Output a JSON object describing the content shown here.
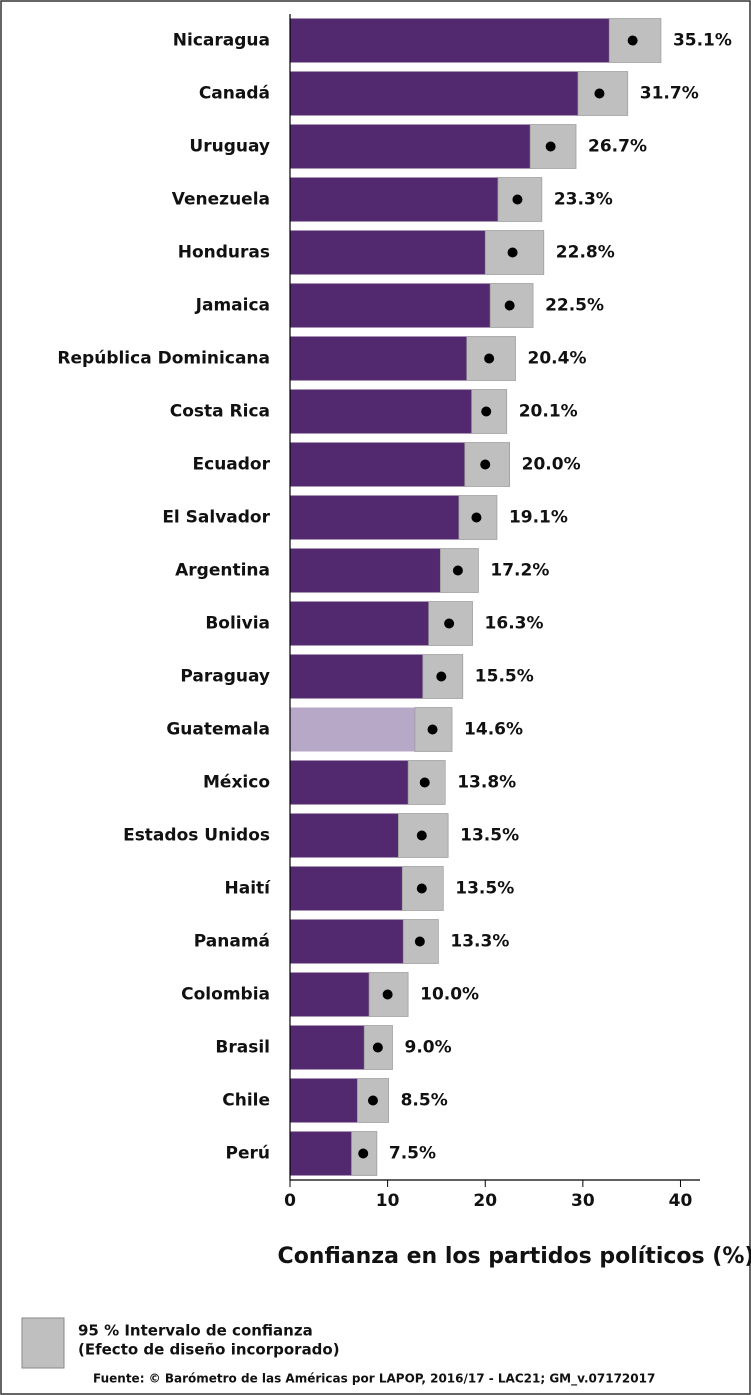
{
  "chart_data": {
    "type": "hbar_ci",
    "categories": [
      "Nicaragua",
      "Canadá",
      "Uruguay",
      "Venezuela",
      "Honduras",
      "Jamaica",
      "República Dominicana",
      "Costa Rica",
      "Ecuador",
      "El Salvador",
      "Argentina",
      "Bolivia",
      "Paraguay",
      "Guatemala",
      "México",
      "Estados Unidos",
      "Haití",
      "Panamá",
      "Colombia",
      "Brasil",
      "Chile",
      "Perú"
    ],
    "series": [
      {
        "values": [
          35.1,
          31.7,
          26.7,
          23.3,
          22.8,
          22.5,
          20.4,
          20.1,
          20.0,
          19.1,
          17.2,
          16.3,
          15.5,
          14.6,
          13.8,
          13.5,
          13.5,
          13.3,
          10.0,
          9.0,
          8.5,
          7.5
        ],
        "value_labels": [
          "35.1%",
          "31.7%",
          "26.7%",
          "23.3%",
          "22.8%",
          "22.5%",
          "20.4%",
          "20.1%",
          "20.0%",
          "19.1%",
          "17.2%",
          "16.3%",
          "15.5%",
          "14.6%",
          "13.8%",
          "13.5%",
          "13.5%",
          "13.3%",
          "10.0%",
          "9.0%",
          "8.5%",
          "7.5%"
        ],
        "ci_low": [
          32.7,
          29.5,
          24.6,
          21.3,
          20.0,
          20.5,
          18.1,
          18.6,
          17.9,
          17.3,
          15.4,
          14.2,
          13.6,
          12.8,
          12.1,
          11.1,
          11.5,
          11.6,
          8.1,
          7.6,
          6.9,
          6.3
        ],
        "ci_high": [
          38.0,
          34.6,
          29.3,
          25.8,
          26.0,
          24.9,
          23.1,
          22.2,
          22.5,
          21.2,
          19.3,
          18.7,
          17.7,
          16.6,
          15.9,
          16.2,
          15.7,
          15.2,
          12.1,
          10.5,
          10.1,
          8.9
        ],
        "colors": [
          "#52296e",
          "#52296e",
          "#52296e",
          "#52296e",
          "#52296e",
          "#52296e",
          "#52296e",
          "#52296e",
          "#52296e",
          "#52296e",
          "#52296e",
          "#52296e",
          "#52296e",
          "#b8a8c8",
          "#52296e",
          "#52296e",
          "#52296e",
          "#52296e",
          "#52296e",
          "#52296e",
          "#52296e",
          "#52296e"
        ]
      }
    ],
    "ci_color": "#bfbfbf",
    "xlim": [
      0,
      42
    ],
    "xticks": [
      0,
      10,
      20,
      30,
      40
    ],
    "xlabel": "Confianza en los partidos políticos (%)",
    "legend": [
      "95 % Intervalo de confianza",
      "(Efecto de diseño incorporado)"
    ],
    "source": "Fuente: © Barómetro de las Américas por LAPOP, 2016/17 - LAC21; GM_v.07172017"
  }
}
